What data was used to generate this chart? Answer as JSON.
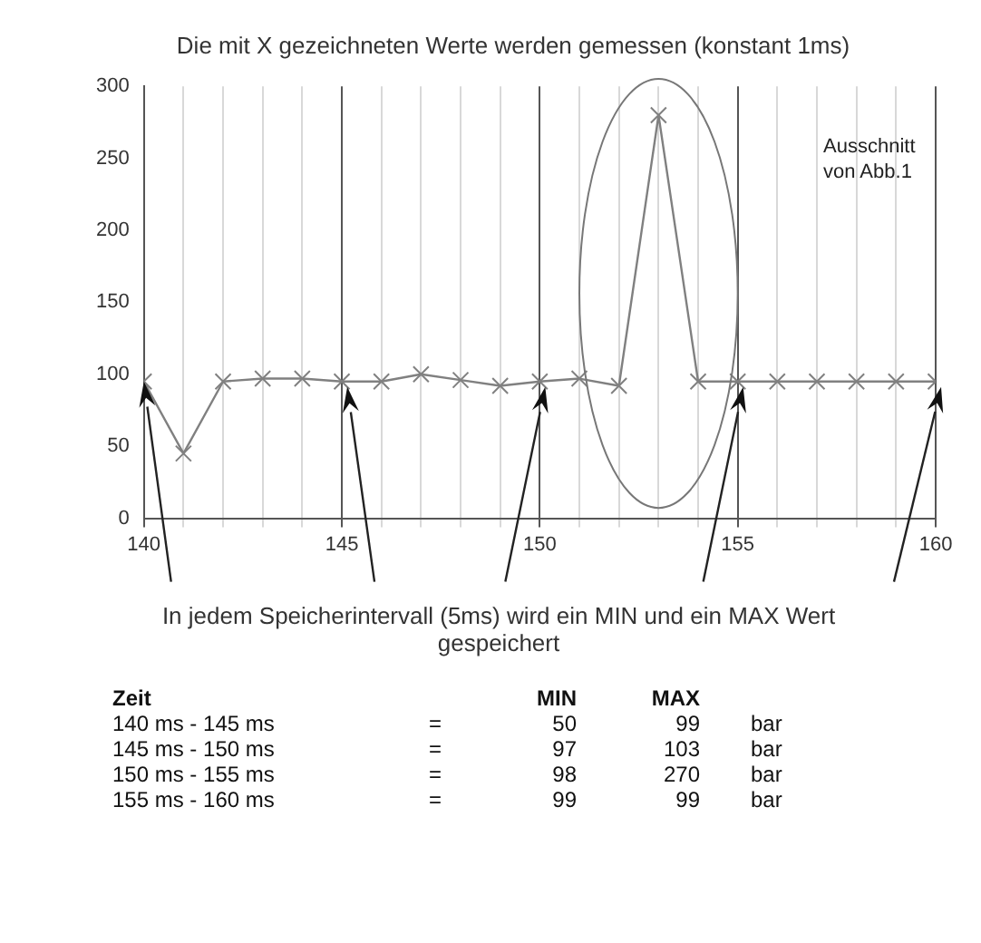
{
  "chart_data": {
    "type": "line",
    "title": "Die mit X gezeichneten Werte werden gemessen (konstant 1ms)",
    "x": [
      140,
      141,
      142,
      143,
      144,
      145,
      146,
      147,
      148,
      149,
      150,
      151,
      152,
      153,
      154,
      155,
      156,
      157,
      158,
      159,
      160
    ],
    "series": [
      {
        "color": "#808080",
        "values": [
          95,
          45,
          95,
          97,
          97,
          95,
          95,
          100,
          96,
          92,
          95,
          97,
          92,
          280,
          95,
          95,
          95,
          95,
          95,
          95,
          95
        ]
      }
    ],
    "xlim": [
      140,
      160
    ],
    "ylim": [
      0,
      300
    ],
    "xticks": [
      140,
      {
        "value": 141,
        "label": null
      },
      {
        "value": 142,
        "label": null
      },
      {
        "value": 143,
        "label": null
      },
      {
        "value": 144,
        "label": null
      },
      145,
      {
        "value": 146,
        "label": null
      },
      {
        "value": 147,
        "label": null
      },
      {
        "value": 148,
        "label": null
      },
      {
        "value": 149,
        "label": null
      },
      150,
      {
        "value": 151,
        "label": null
      },
      {
        "value": 152,
        "label": null
      },
      {
        "value": 153,
        "label": null
      },
      {
        "value": 154,
        "label": null
      },
      155,
      {
        "value": 156,
        "label": null
      },
      {
        "value": 157,
        "label": null
      },
      {
        "value": 158,
        "label": null
      },
      {
        "value": 159,
        "label": null
      },
      160
    ],
    "yticks": [
      0,
      50,
      100,
      150,
      200,
      250,
      300
    ],
    "grid": "x",
    "legend": false,
    "marker": "cross",
    "line_style": "solid",
    "annotations": [
      "Ausschnitt von Abb.1",
      "In jedem Speicherintervall (5ms) wird ein MIN und ein MAX Wert gespeichert",
      "Zeit\t\tMIN\tMAX\t",
      "140 ms - 145 ms\t=\t50\t99\tbar",
      "145 ms - 150 ms\t=\t97\t103\tbar",
      "150 ms - 155 ms\t=\t98\t270\tbar",
      "155 ms - 160 ms\t=\t99\t99\tbar"
    ]
  }
}
